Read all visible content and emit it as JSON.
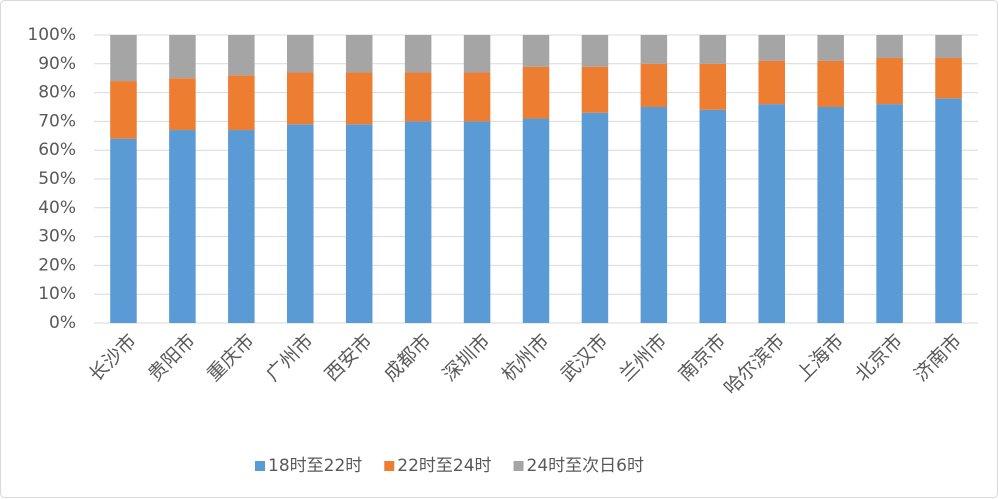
{
  "chart_data": {
    "type": "stacked-bar",
    "categories": [
      "长沙市",
      "贵阳市",
      "重庆市",
      "广州市",
      "西安市",
      "成都市",
      "深圳市",
      "杭州市",
      "武汉市",
      "兰州市",
      "南京市",
      "哈尔滨市",
      "上海市",
      "北京市",
      "济南市"
    ],
    "series": [
      {
        "name": "18时至22时",
        "color": "#5b9bd5",
        "values": [
          64,
          67,
          67,
          69,
          69,
          70,
          70,
          71,
          73,
          75,
          74,
          76,
          75,
          76,
          78
        ]
      },
      {
        "name": "22时至24时",
        "color": "#ed7d31",
        "values": [
          20,
          18,
          19,
          18,
          18,
          17,
          17,
          18,
          16,
          15,
          16,
          15,
          16,
          16,
          14
        ]
      },
      {
        "name": "24时至次日6时",
        "color": "#a5a5a5",
        "values": [
          16,
          15,
          14,
          13,
          13,
          13,
          13,
          11,
          11,
          10,
          10,
          9,
          9,
          8,
          8
        ]
      }
    ],
    "ylim": [
      0,
      100
    ],
    "yticks": [
      {
        "value": 0,
        "label": "0%"
      },
      {
        "value": 10,
        "label": "10%"
      },
      {
        "value": 20,
        "label": "20%"
      },
      {
        "value": 30,
        "label": "30%"
      },
      {
        "value": 40,
        "label": "40%"
      },
      {
        "value": 50,
        "label": "50%"
      },
      {
        "value": 60,
        "label": "60%"
      },
      {
        "value": 70,
        "label": "70%"
      },
      {
        "value": 80,
        "label": "80%"
      },
      {
        "value": 90,
        "label": "90%"
      },
      {
        "value": 100,
        "label": "100%"
      }
    ],
    "grid": true,
    "legend": "bottom"
  }
}
